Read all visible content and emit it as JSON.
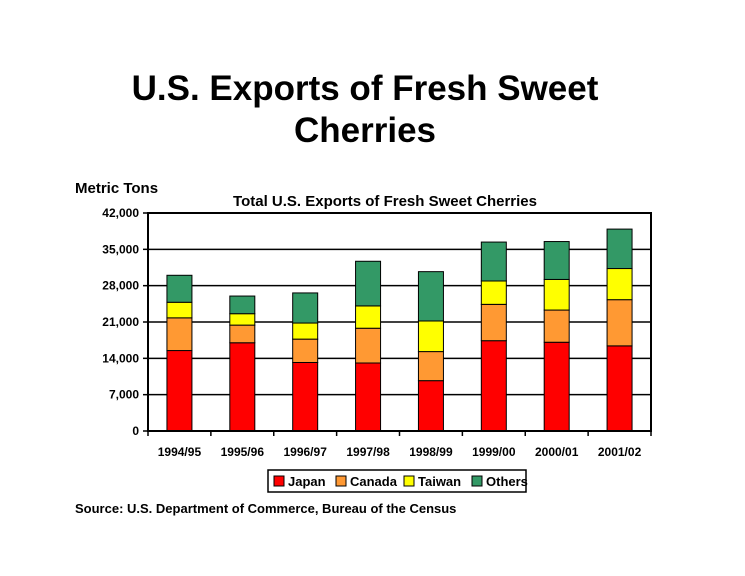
{
  "page": {
    "title_line1": "U.S. Exports of Fresh Sweet",
    "title_line2": "Cherries",
    "source": "Source: U.S. Department of Commerce, Bureau of the Census"
  },
  "chart_data": {
    "type": "bar",
    "stacked": true,
    "title": "Total U.S. Exports of Fresh Sweet Cherries",
    "ylabel": "Metric Tons",
    "xlabel": "",
    "categories": [
      "1994/95",
      "1995/96",
      "1996/97",
      "1997/98",
      "1998/99",
      "1999/00",
      "2000/01",
      "2001/02"
    ],
    "ylim": [
      0,
      42000
    ],
    "yticks": [
      0,
      7000,
      14000,
      21000,
      28000,
      35000,
      42000
    ],
    "ytick_labels": [
      "0",
      "7,000",
      "14,000",
      "21,000",
      "28,000",
      "35,000",
      "42,000"
    ],
    "grid": true,
    "legend_position": "bottom",
    "series": [
      {
        "name": "Japan",
        "color": "#ff0000",
        "values": [
          15500,
          17000,
          13200,
          13100,
          9700,
          17400,
          17100,
          16400
        ]
      },
      {
        "name": "Canada",
        "color": "#ff9933",
        "values": [
          6300,
          3400,
          4500,
          6700,
          5600,
          7000,
          6200,
          8900
        ]
      },
      {
        "name": "Taiwan",
        "color": "#ffff00",
        "values": [
          3000,
          2200,
          3100,
          4300,
          5900,
          4500,
          5900,
          6000
        ]
      },
      {
        "name": "Others",
        "color": "#339966",
        "values": [
          5200,
          3400,
          5800,
          8600,
          9500,
          7500,
          7300,
          7600
        ]
      }
    ]
  }
}
